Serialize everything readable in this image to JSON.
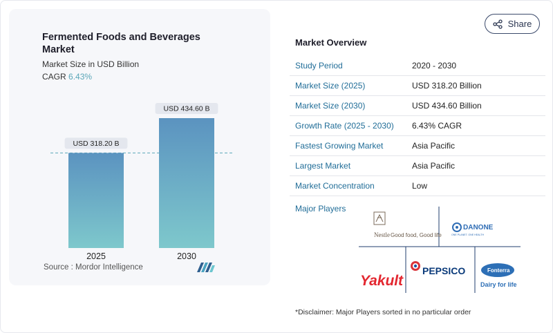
{
  "share": {
    "label": "Share",
    "icon": "share-icon"
  },
  "chart_data": {
    "type": "bar",
    "title": "Fermented Foods and Beverages Market",
    "subtitle": "Market Size in USD Billion",
    "cagr_label": "CAGR",
    "cagr_value": "6.43%",
    "categories": [
      "2025",
      "2030"
    ],
    "values": [
      318.2,
      434.6
    ],
    "data_labels": [
      "USD 318.20 B",
      "USD 434.60 B"
    ],
    "ylim": [
      0,
      434.6
    ],
    "grid": false,
    "reference_line": "dashed line at 2025 value",
    "bar_colors": [
      "#5a96c2",
      "#7cc7cc"
    ]
  },
  "source": {
    "label": "Source :",
    "value": "Mordor Intelligence"
  },
  "overview": {
    "title": "Market Overview",
    "rows": [
      {
        "label": "Study Period",
        "value": "2020 - 2030"
      },
      {
        "label": "Market Size (2025)",
        "value": "USD 318.20 Billion"
      },
      {
        "label": "Market Size (2030)",
        "value": "USD 434.60 Billion"
      },
      {
        "label": "Growth Rate (2025 - 2030)",
        "value": "6.43% CAGR"
      },
      {
        "label": "Fastest Growing Market",
        "value": "Asia Pacific"
      },
      {
        "label": "Largest Market",
        "value": "Asia Pacific"
      },
      {
        "label": "Market Concentration",
        "value": "Low"
      }
    ],
    "players_title": "Major Players",
    "players": [
      {
        "name": "Nestle",
        "tagline": "Good food, Good life"
      },
      {
        "name": "DANONE",
        "tagline": "ONE PLANET. ONE HEALTH"
      },
      {
        "name": "Yakult"
      },
      {
        "name": "PEPSICO"
      },
      {
        "name": "Fonterra",
        "tagline": "Dairy for life"
      }
    ]
  },
  "disclaimer": "*Disclaimer: Major Players sorted in no particular order",
  "colors": {
    "link_blue": "#1f6c97",
    "accent_teal": "#5aa6b8"
  }
}
